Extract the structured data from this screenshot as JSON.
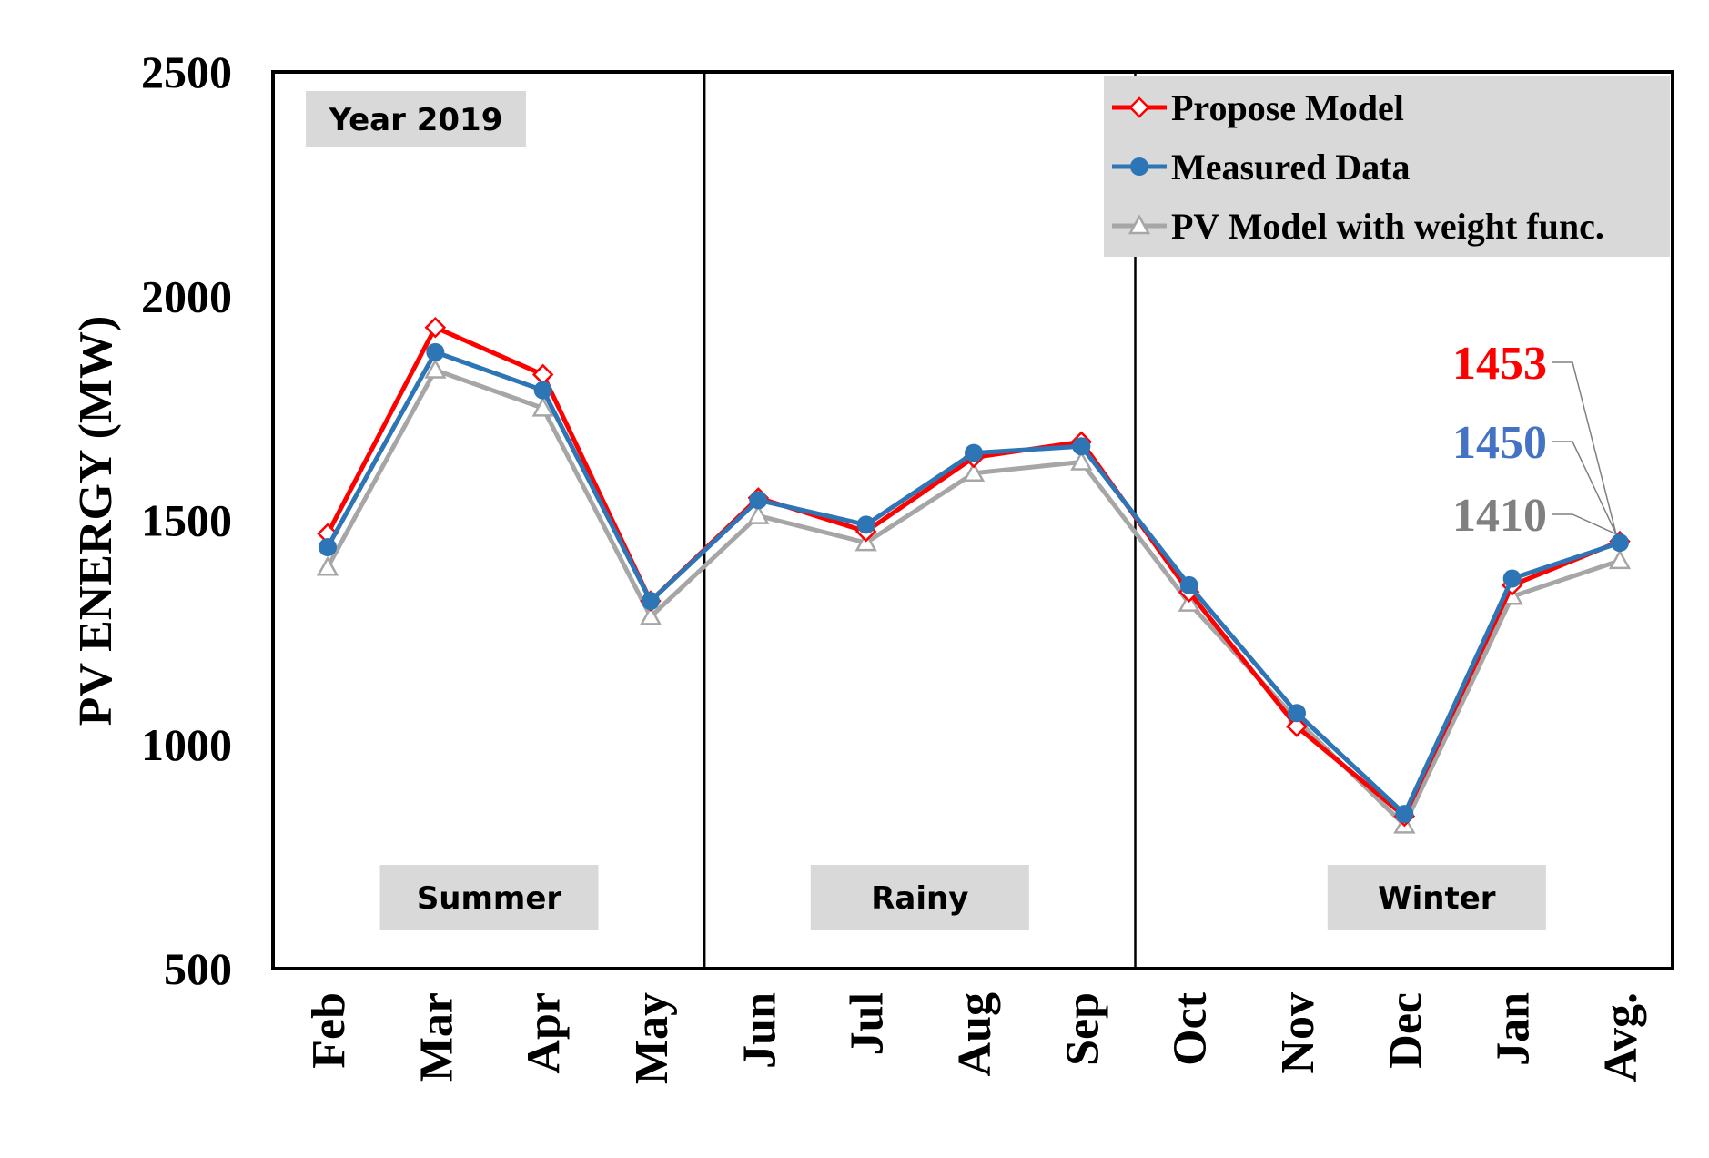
{
  "chart_data": {
    "type": "line",
    "title": "",
    "xlabel": "",
    "ylabel": "PV ENERGY (MW)",
    "ylim": [
      500,
      2500
    ],
    "yticks": [
      500,
      1000,
      1500,
      2000,
      2500
    ],
    "grid": false,
    "legend_position": "top-right",
    "categories": [
      "Feb",
      "Mar",
      "Apr",
      "May",
      "Jun",
      "Jul",
      "Aug",
      "Sep",
      "Oct",
      "Nov",
      "Dec",
      "Jan",
      "Avg."
    ],
    "series": [
      {
        "name": "PV Model with weight func.",
        "color": "#a6a6a6",
        "marker": "triangle-open",
        "values": [
          1395,
          1835,
          1750,
          1285,
          1510,
          1450,
          1605,
          1630,
          1315,
          1055,
          820,
          1330,
          1410
        ]
      },
      {
        "name": "Propose Model",
        "color": "#ff0000",
        "marker": "diamond-open",
        "values": [
          1470,
          1930,
          1825,
          1320,
          1550,
          1475,
          1640,
          1675,
          1340,
          1040,
          840,
          1355,
          1453
        ]
      },
      {
        "name": "Measured Data",
        "color": "#2e75b6",
        "marker": "circle-filled",
        "values": [
          1440,
          1875,
          1790,
          1320,
          1545,
          1490,
          1650,
          1665,
          1355,
          1070,
          845,
          1370,
          1450
        ]
      }
    ],
    "legend_order": [
      1,
      2,
      0
    ],
    "season_dividers": [
      3.5,
      7.5
    ],
    "annotations": {
      "year_label": "Year 2019",
      "seasons": [
        "Summer",
        "Rainy",
        "Winter"
      ],
      "avg_labels": [
        {
          "text": "1453",
          "color": "#ff0000"
        },
        {
          "text": "1450",
          "color": "#4472c4"
        },
        {
          "text": "1410",
          "color": "#808080"
        }
      ]
    }
  }
}
